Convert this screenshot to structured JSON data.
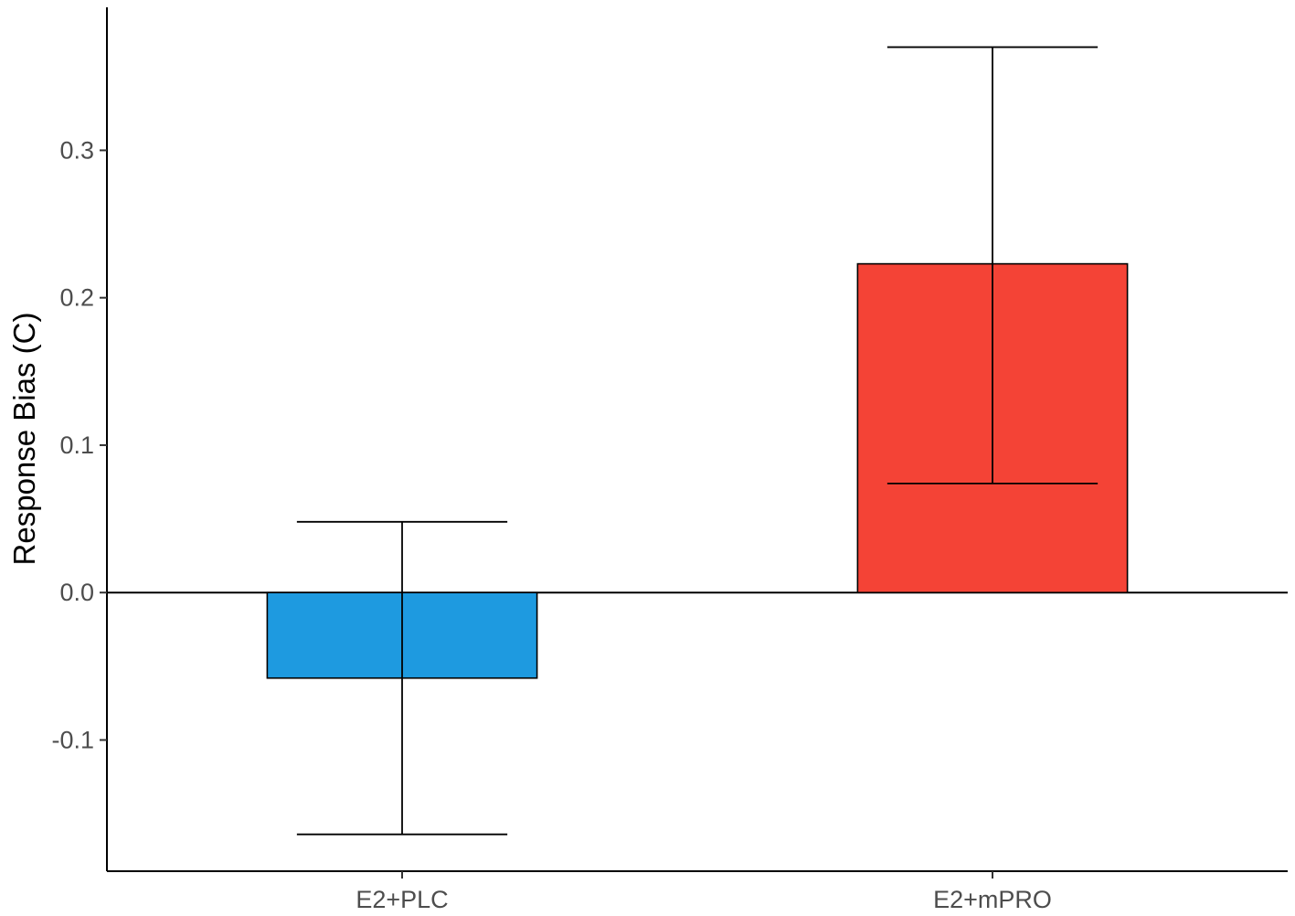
{
  "chart_data": {
    "type": "bar",
    "title": "",
    "xlabel": "",
    "ylabel": "Response Bias (C)",
    "categories": [
      "E2+PLC",
      "E2+mPRO"
    ],
    "values": [
      -0.058,
      0.223
    ],
    "error_lower": [
      -0.164,
      0.074
    ],
    "error_upper": [
      0.048,
      0.37
    ],
    "colors": [
      "#1E9AE0",
      "#F44336"
    ],
    "ylim": [
      -0.189,
      0.397
    ],
    "yticks": [
      -0.1,
      0.0,
      0.1,
      0.2,
      0.3
    ],
    "ytick_labels": [
      "-0.1",
      "0.0",
      "0.1",
      "0.2",
      "0.3"
    ],
    "zero_line": true,
    "grid": false,
    "legend": "none"
  }
}
